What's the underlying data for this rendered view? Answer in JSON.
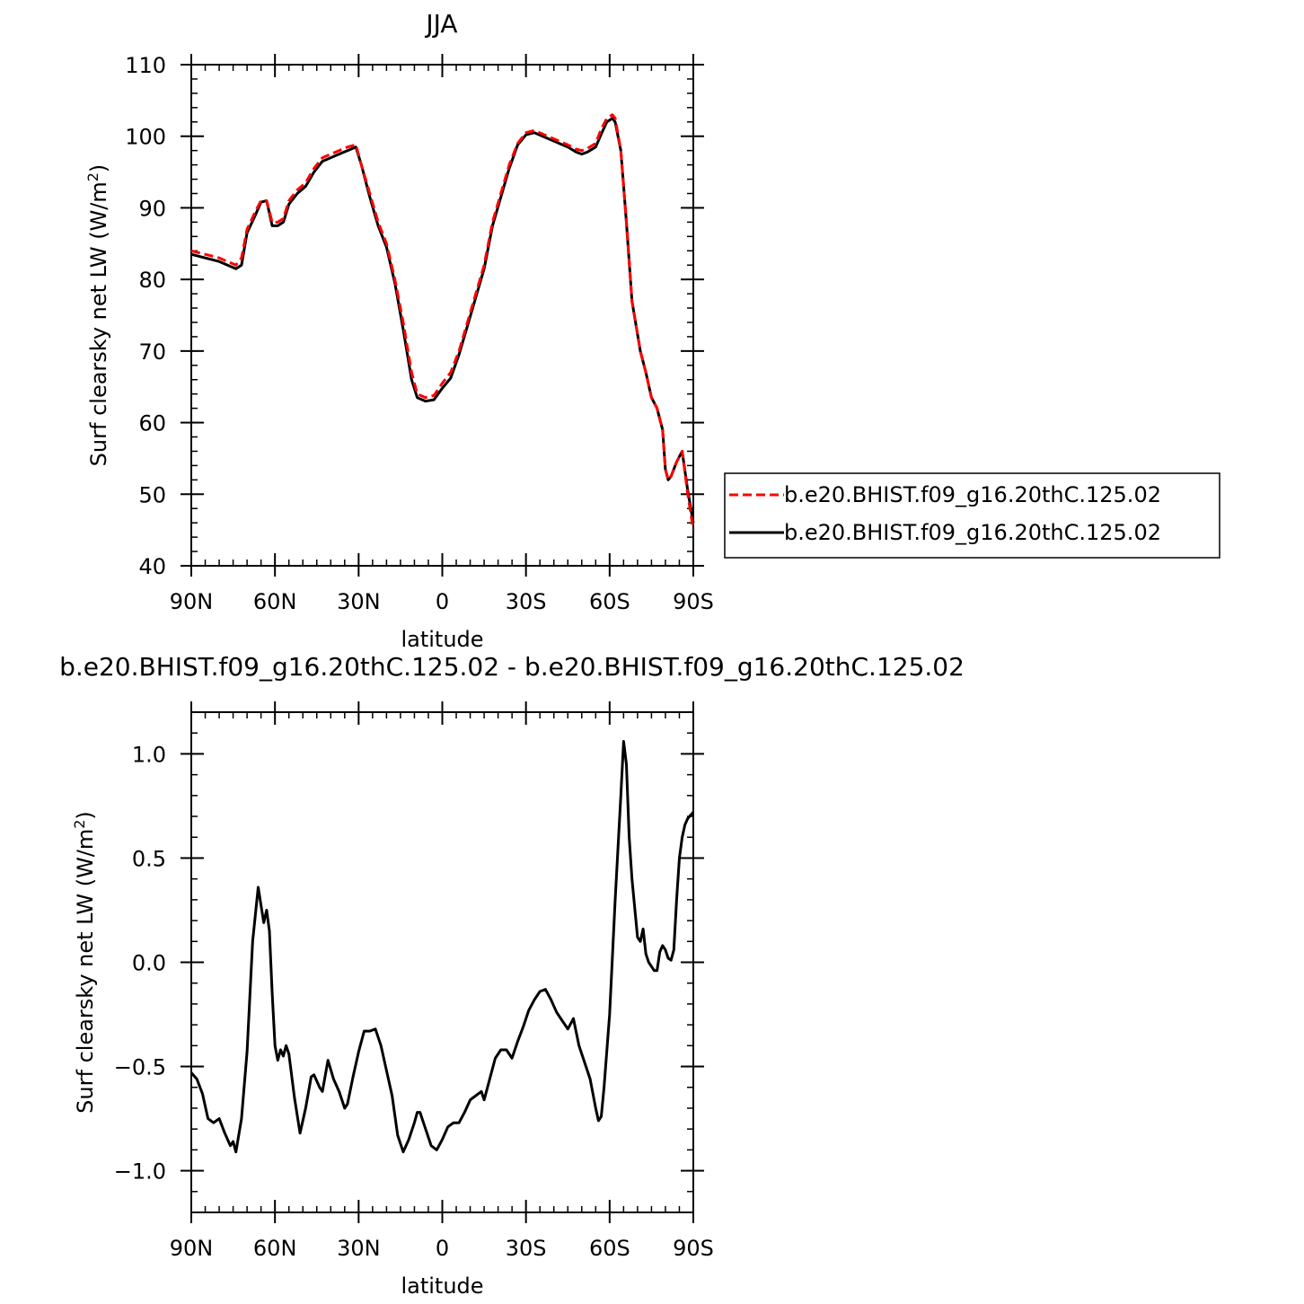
{
  "chart_data": [
    {
      "type": "line",
      "title": "JJA",
      "xlabel": "latitude",
      "ylabel": "Surf clearsky net LW (W/m²)",
      "ylabel_main": "Surf clearsky net LW (W/m",
      "ylabel_sup": "2",
      "ylabel_tail": ")",
      "xlim": [
        90,
        -90
      ],
      "ylim": [
        40,
        110
      ],
      "x_ticks": [
        90,
        60,
        30,
        0,
        -30,
        -60,
        -90
      ],
      "x_tick_labels": [
        "90N",
        "60N",
        "30N",
        "0",
        "30S",
        "60S",
        "90S"
      ],
      "y_ticks": [
        40,
        50,
        60,
        70,
        80,
        90,
        100,
        110
      ],
      "y_tick_labels": [
        "40",
        "50",
        "60",
        "70",
        "80",
        "90",
        "100",
        "110"
      ],
      "legend": {
        "placement": "right"
      },
      "series": [
        {
          "name": "b.e20.BHIST.f09_g16.20thC.125.02",
          "color": "#ff0000",
          "dash": "dashed",
          "points": [
            [
              90,
              84
            ],
            [
              85,
              83.5
            ],
            [
              80,
              83
            ],
            [
              77,
              82.5
            ],
            [
              74,
              82
            ],
            [
              72,
              83
            ],
            [
              70,
              87
            ],
            [
              67,
              89.5
            ],
            [
              65,
              91
            ],
            [
              63,
              91
            ],
            [
              61,
              88
            ],
            [
              59,
              88
            ],
            [
              57,
              88.5
            ],
            [
              55,
              91
            ],
            [
              52,
              92.5
            ],
            [
              49,
              93.5
            ],
            [
              46,
              95.5
            ],
            [
              43,
              97
            ],
            [
              40,
              97.5
            ],
            [
              37,
              98
            ],
            [
              34,
              98.5
            ],
            [
              31,
              98.8
            ],
            [
              29,
              96
            ],
            [
              26,
              92
            ],
            [
              23,
              88
            ],
            [
              20,
              85
            ],
            [
              17,
              80
            ],
            [
              14,
              74
            ],
            [
              11,
              67
            ],
            [
              9,
              64
            ],
            [
              6,
              63.5
            ],
            [
              3,
              63.8
            ],
            [
              0,
              65.5
            ],
            [
              -3,
              67
            ],
            [
              -6,
              70
            ],
            [
              -9,
              74
            ],
            [
              -12,
              78
            ],
            [
              -15,
              82
            ],
            [
              -18,
              88
            ],
            [
              -21,
              92
            ],
            [
              -24,
              96
            ],
            [
              -27,
              99
            ],
            [
              -30,
              100.5
            ],
            [
              -33,
              100.8
            ],
            [
              -36,
              100.3
            ],
            [
              -39,
              99.8
            ],
            [
              -42,
              99.3
            ],
            [
              -45,
              98.8
            ],
            [
              -48,
              98.2
            ],
            [
              -50,
              98
            ],
            [
              -52,
              98.3
            ],
            [
              -55,
              99
            ],
            [
              -57,
              101
            ],
            [
              -59,
              102.5
            ],
            [
              -61,
              103
            ],
            [
              -62,
              102.5
            ],
            [
              -64,
              98
            ],
            [
              -66,
              88
            ],
            [
              -68,
              77
            ],
            [
              -71,
              70
            ],
            [
              -73,
              67
            ],
            [
              -75,
              63.5
            ],
            [
              -77,
              62
            ],
            [
              -79,
              59
            ],
            [
              -80,
              53.5
            ],
            [
              -81,
              52
            ],
            [
              -82,
              52.5
            ],
            [
              -84,
              54.5
            ],
            [
              -86,
              56
            ],
            [
              -88,
              50
            ],
            [
              -90,
              45
            ]
          ]
        },
        {
          "name": "b.e20.BHIST.f09_g16.20thC.125.02",
          "color": "#000000",
          "dash": "solid",
          "points": [
            [
              90,
              83.5
            ],
            [
              85,
              83
            ],
            [
              80,
              82.5
            ],
            [
              77,
              82
            ],
            [
              74,
              81.5
            ],
            [
              72,
              82
            ],
            [
              70,
              86.5
            ],
            [
              67,
              89
            ],
            [
              65,
              90.8
            ],
            [
              63,
              91
            ],
            [
              61,
              87.5
            ],
            [
              59,
              87.5
            ],
            [
              57,
              88
            ],
            [
              55,
              90.5
            ],
            [
              52,
              92
            ],
            [
              49,
              93
            ],
            [
              46,
              95
            ],
            [
              43,
              96.5
            ],
            [
              40,
              97
            ],
            [
              37,
              97.5
            ],
            [
              34,
              98
            ],
            [
              31,
              98.5
            ],
            [
              29,
              96
            ],
            [
              26,
              91.5
            ],
            [
              23,
              87.5
            ],
            [
              20,
              84.5
            ],
            [
              17,
              79.5
            ],
            [
              14,
              73
            ],
            [
              11,
              66
            ],
            [
              9,
              63.5
            ],
            [
              6,
              63
            ],
            [
              3,
              63.2
            ],
            [
              0,
              64.8
            ],
            [
              -3,
              66.2
            ],
            [
              -6,
              69.5
            ],
            [
              -9,
              73.5
            ],
            [
              -12,
              77.5
            ],
            [
              -15,
              81.5
            ],
            [
              -18,
              87.5
            ],
            [
              -21,
              91.5
            ],
            [
              -24,
              95.5
            ],
            [
              -27,
              98.8
            ],
            [
              -30,
              100.2
            ],
            [
              -33,
              100.5
            ],
            [
              -36,
              100
            ],
            [
              -39,
              99.5
            ],
            [
              -42,
              99
            ],
            [
              -45,
              98.5
            ],
            [
              -48,
              97.8
            ],
            [
              -50,
              97.5
            ],
            [
              -52,
              97.8
            ],
            [
              -55,
              98.5
            ],
            [
              -57,
              100.3
            ],
            [
              -59,
              102
            ],
            [
              -61,
              102.5
            ],
            [
              -62,
              102
            ],
            [
              -64,
              98
            ],
            [
              -66,
              88
            ],
            [
              -68,
              77
            ],
            [
              -71,
              70
            ],
            [
              -73,
              67
            ],
            [
              -75,
              63.5
            ],
            [
              -77,
              62
            ],
            [
              -79,
              59
            ],
            [
              -80,
              53.5
            ],
            [
              -81,
              52
            ],
            [
              -82,
              52.5
            ],
            [
              -84,
              54.5
            ],
            [
              -86,
              56
            ],
            [
              -88,
              50.5
            ],
            [
              -90,
              46
            ]
          ]
        }
      ]
    },
    {
      "type": "line",
      "title": "b.e20.BHIST.f09_g16.20thC.125.02 - b.e20.BHIST.f09_g16.20thC.125.02",
      "xlabel": "latitude",
      "ylabel": "Surf clearsky net LW (W/m²)",
      "ylabel_main": "Surf clearsky net LW (W/m",
      "ylabel_sup": "2",
      "ylabel_tail": ")",
      "xlim": [
        90,
        -90
      ],
      "ylim": [
        -1.2,
        1.2
      ],
      "x_ticks": [
        90,
        60,
        30,
        0,
        -30,
        -60,
        -90
      ],
      "x_tick_labels": [
        "90N",
        "60N",
        "30N",
        "0",
        "30S",
        "60S",
        "90S"
      ],
      "y_ticks": [
        -1.0,
        -0.5,
        0.0,
        0.5,
        1.0
      ],
      "y_tick_labels": [
        "−1.0",
        "−0.5",
        "0.0",
        "0.5",
        "1.0"
      ],
      "series": [
        {
          "color": "#000000",
          "dash": "solid",
          "points": [
            [
              90,
              -0.53
            ],
            [
              88,
              -0.56
            ],
            [
              86,
              -0.63
            ],
            [
              84,
              -0.75
            ],
            [
              82,
              -0.77
            ],
            [
              80,
              -0.75
            ],
            [
              78,
              -0.82
            ],
            [
              76,
              -0.88
            ],
            [
              75,
              -0.86
            ],
            [
              74,
              -0.91
            ],
            [
              72,
              -0.75
            ],
            [
              70,
              -0.43
            ],
            [
              68,
              0.1
            ],
            [
              66,
              0.36
            ],
            [
              64,
              0.19
            ],
            [
              63,
              0.25
            ],
            [
              62,
              0.15
            ],
            [
              61,
              -0.15
            ],
            [
              60,
              -0.4
            ],
            [
              59,
              -0.47
            ],
            [
              58,
              -0.42
            ],
            [
              57,
              -0.45
            ],
            [
              56,
              -0.4
            ],
            [
              55,
              -0.44
            ],
            [
              53,
              -0.65
            ],
            [
              51,
              -0.82
            ],
            [
              49,
              -0.7
            ],
            [
              47,
              -0.55
            ],
            [
              46,
              -0.54
            ],
            [
              44,
              -0.6
            ],
            [
              43,
              -0.62
            ],
            [
              41,
              -0.47
            ],
            [
              39,
              -0.56
            ],
            [
              37,
              -0.62
            ],
            [
              35,
              -0.7
            ],
            [
              34,
              -0.68
            ],
            [
              32,
              -0.55
            ],
            [
              30,
              -0.43
            ],
            [
              28,
              -0.33
            ],
            [
              26,
              -0.33
            ],
            [
              24,
              -0.32
            ],
            [
              22,
              -0.4
            ],
            [
              20,
              -0.52
            ],
            [
              18,
              -0.64
            ],
            [
              16,
              -0.83
            ],
            [
              14,
              -0.91
            ],
            [
              12,
              -0.85
            ],
            [
              10,
              -0.77
            ],
            [
              9,
              -0.72
            ],
            [
              8,
              -0.72
            ],
            [
              6,
              -0.8
            ],
            [
              4,
              -0.88
            ],
            [
              2,
              -0.9
            ],
            [
              0,
              -0.85
            ],
            [
              -2,
              -0.79
            ],
            [
              -4,
              -0.77
            ],
            [
              -6,
              -0.77
            ],
            [
              -8,
              -0.72
            ],
            [
              -10,
              -0.66
            ],
            [
              -12,
              -0.64
            ],
            [
              -14,
              -0.62
            ],
            [
              -15,
              -0.66
            ],
            [
              -17,
              -0.56
            ],
            [
              -19,
              -0.46
            ],
            [
              -21,
              -0.42
            ],
            [
              -23,
              -0.42
            ],
            [
              -25,
              -0.46
            ],
            [
              -27,
              -0.38
            ],
            [
              -29,
              -0.31
            ],
            [
              -31,
              -0.23
            ],
            [
              -33,
              -0.18
            ],
            [
              -35,
              -0.14
            ],
            [
              -37,
              -0.13
            ],
            [
              -39,
              -0.18
            ],
            [
              -41,
              -0.24
            ],
            [
              -43,
              -0.28
            ],
            [
              -45,
              -0.32
            ],
            [
              -47,
              -0.27
            ],
            [
              -49,
              -0.4
            ],
            [
              -51,
              -0.48
            ],
            [
              -53,
              -0.56
            ],
            [
              -55,
              -0.7
            ],
            [
              -56,
              -0.76
            ],
            [
              -57,
              -0.74
            ],
            [
              -58,
              -0.6
            ],
            [
              -60,
              -0.25
            ],
            [
              -62,
              0.3
            ],
            [
              -64,
              0.8
            ],
            [
              -65,
              1.06
            ],
            [
              -66,
              0.95
            ],
            [
              -67,
              0.6
            ],
            [
              -68,
              0.4
            ],
            [
              -70,
              0.12
            ],
            [
              -71,
              0.1
            ],
            [
              -72,
              0.16
            ],
            [
              -73,
              0.04
            ],
            [
              -74,
              0.0
            ],
            [
              -76,
              -0.04
            ],
            [
              -77,
              -0.04
            ],
            [
              -78,
              0.05
            ],
            [
              -79,
              0.08
            ],
            [
              -80,
              0.06
            ],
            [
              -81,
              0.02
            ],
            [
              -82,
              0.01
            ],
            [
              -83,
              0.06
            ],
            [
              -84,
              0.3
            ],
            [
              -85,
              0.5
            ],
            [
              -86,
              0.6
            ],
            [
              -87,
              0.66
            ],
            [
              -88,
              0.69
            ],
            [
              -90,
              0.72
            ]
          ]
        }
      ]
    }
  ]
}
